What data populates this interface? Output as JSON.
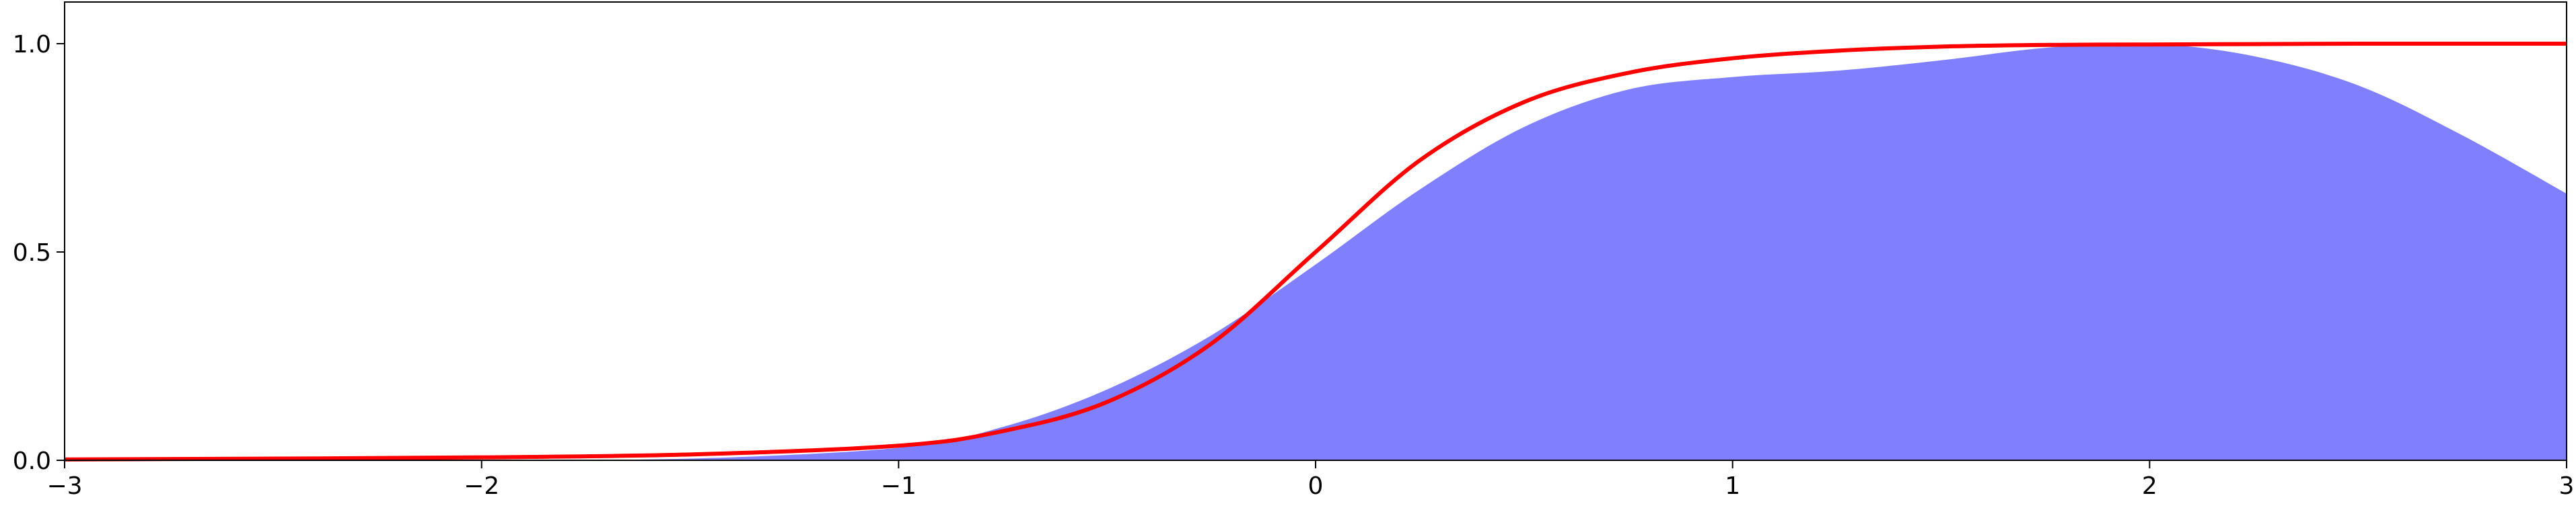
{
  "chart_data": {
    "type": "area",
    "title": "",
    "xlabel": "",
    "ylabel": "",
    "xlim": [
      -3,
      3
    ],
    "ylim": [
      0,
      1.1
    ],
    "grid": false,
    "legend": "none",
    "x_ticks": [
      -3,
      -2,
      -1,
      0,
      1,
      2,
      3
    ],
    "x_tick_labels": [
      "−3",
      "−2",
      "−1",
      "0",
      "1",
      "2",
      "3"
    ],
    "y_ticks": [
      0.0,
      0.5,
      1.0
    ],
    "y_tick_labels": [
      "0.0",
      "0.5",
      "1.0"
    ],
    "series": [
      {
        "kind": "area",
        "color": "#8080ff",
        "x": [
          -3.0,
          -2.5,
          -2.0,
          -1.5,
          -1.0,
          -0.75,
          -0.5,
          -0.25,
          0.0,
          0.25,
          0.5,
          0.75,
          1.0,
          1.25,
          1.5,
          1.75,
          2.0,
          2.25,
          2.5,
          2.75,
          3.0
        ],
        "y": [
          0.0,
          0.0,
          0.0,
          0.004,
          0.03,
          0.08,
          0.17,
          0.3,
          0.47,
          0.65,
          0.8,
          0.89,
          0.92,
          0.935,
          0.96,
          0.99,
          1.0,
          0.97,
          0.9,
          0.78,
          0.64
        ]
      },
      {
        "kind": "line",
        "color": "#ff0000",
        "x": [
          -3.0,
          -2.5,
          -2.0,
          -1.5,
          -1.0,
          -0.75,
          -0.5,
          -0.25,
          0.0,
          0.25,
          0.5,
          0.75,
          1.0,
          1.25,
          1.5,
          1.75,
          2.0,
          2.25,
          2.5,
          2.75,
          3.0
        ],
        "y": [
          0.002,
          0.004,
          0.007,
          0.014,
          0.035,
          0.07,
          0.14,
          0.28,
          0.5,
          0.72,
          0.86,
          0.93,
          0.965,
          0.983,
          0.993,
          0.997,
          0.998,
          0.999,
          1.0,
          1.0,
          1.0
        ]
      }
    ]
  }
}
